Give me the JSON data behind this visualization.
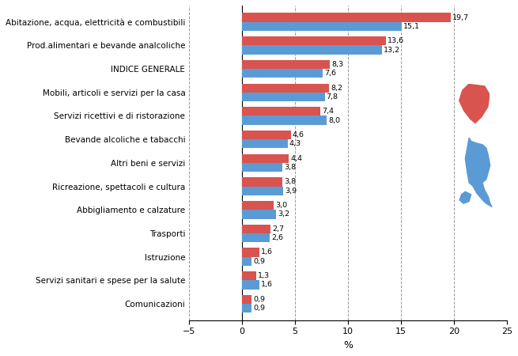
{
  "categories": [
    "Abitazione, acqua, elettricità e combustibili",
    "Prod.alimentari e bevande analcoliche",
    "INDICE GENERALE",
    "Mobili, articoli e servizi per la casa",
    "Servizi ricettivi e di ristorazione",
    "Bevande alcoliche e tabacchi",
    "Altri beni e servizi",
    "Ricreazione, spettacoli e cultura",
    "Abbigliamento e calzature",
    "Trasporti",
    "Istruzione",
    "Servizi sanitari e spese per la salute",
    "Comunicazioni"
  ],
  "toscana": [
    19.7,
    13.6,
    8.3,
    8.2,
    7.4,
    4.6,
    4.4,
    3.8,
    3.0,
    2.7,
    1.6,
    1.3,
    0.9
  ],
  "italia": [
    15.1,
    13.2,
    7.6,
    7.8,
    8.0,
    4.3,
    3.8,
    3.9,
    3.2,
    2.6,
    0.9,
    1.6,
    0.9
  ],
  "color_toscana": "#d9534f",
  "color_italia": "#5b9bd5",
  "bar_height": 0.38,
  "xlim": [
    -5,
    25
  ],
  "xticks": [
    -5,
    0,
    5,
    10,
    15,
    20,
    25
  ],
  "xlabel": "%",
  "background_color": "#ffffff",
  "grid_color": "#999999"
}
